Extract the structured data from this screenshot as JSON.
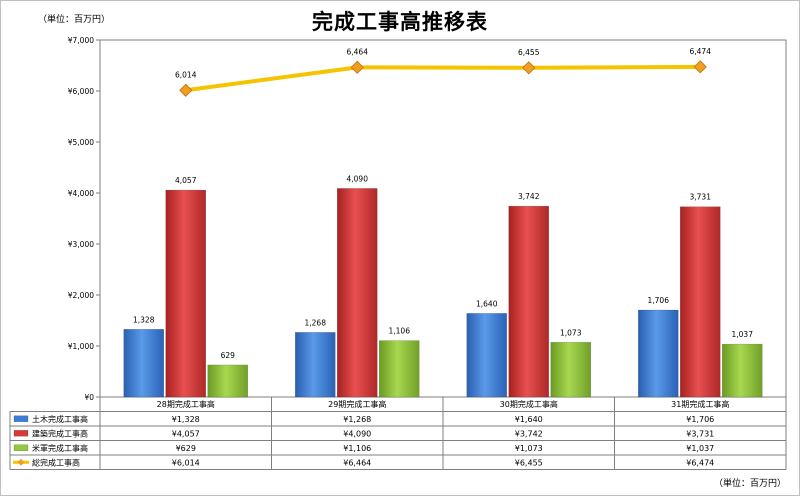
{
  "title": "完成工事高推移表",
  "unit_top": "（単位：百万円）",
  "unit_bottom": "（単位：百万円）",
  "colors": {
    "doboku": "#3b7dd8",
    "kenchiku": "#d63a3a",
    "beigun": "#92c83e",
    "total": "#f5c400",
    "marker": "#f0a020"
  },
  "chart_data": {
    "type": "bar",
    "title": "完成工事高推移表",
    "categories": [
      "28期完成工事高",
      "29期完成工事高",
      "30期完成工事高",
      "31期完成工事高"
    ],
    "y_tick_labels": [
      "¥0",
      "¥1,000",
      "¥2,000",
      "¥3,000",
      "¥4,000",
      "¥5,000",
      "¥6,000",
      "¥7,000"
    ],
    "ylim": [
      0,
      7000
    ],
    "grid": false,
    "legend": "data-table",
    "series": [
      {
        "name": "土木完成工事高",
        "type": "bar",
        "values": [
          1328,
          1268,
          1640,
          1706
        ],
        "labels": [
          "1,328",
          "1,268",
          "1,640",
          "1,706"
        ],
        "table": [
          "¥1,328",
          "¥1,268",
          "¥1,640",
          "¥1,706"
        ]
      },
      {
        "name": "建築完成工事高",
        "type": "bar",
        "values": [
          4057,
          4090,
          3742,
          3731
        ],
        "labels": [
          "4,057",
          "4,090",
          "3,742",
          "3,731"
        ],
        "table": [
          "¥4,057",
          "¥4,090",
          "¥3,742",
          "¥3,731"
        ]
      },
      {
        "name": "米軍完成工事高",
        "type": "bar",
        "values": [
          629,
          1106,
          1073,
          1037
        ],
        "labels": [
          "629",
          "1,106",
          "1,073",
          "1,037"
        ],
        "table": [
          "¥629",
          "¥1,106",
          "¥1,073",
          "¥1,037"
        ]
      },
      {
        "name": "総完成工事高",
        "type": "line",
        "values": [
          6014,
          6464,
          6455,
          6474
        ],
        "labels": [
          "6,014",
          "6,464",
          "6,455",
          "6,474"
        ],
        "table": [
          "¥6,014",
          "¥6,464",
          "¥6,455",
          "¥6,474"
        ]
      }
    ]
  }
}
